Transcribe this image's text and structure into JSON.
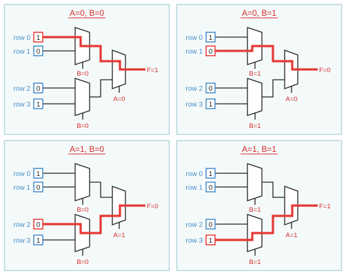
{
  "colors": {
    "highlight": "#e53935",
    "row_blue": "#4a8cc9",
    "wire": "#222222",
    "panel_border": "#b7d6dc",
    "panel_bg": "#f4fafa",
    "title_red": "#d8292a"
  },
  "panels": [
    {
      "title": "A=0, B=0",
      "inputs": [
        {
          "label": "row 0",
          "value": "1",
          "active": true
        },
        {
          "label": "row 1",
          "value": "0",
          "active": false
        },
        {
          "label": "row 2",
          "value": "0",
          "active": false
        },
        {
          "label": "row 3",
          "value": "1",
          "active": false
        }
      ],
      "mux_top_select": "B=0",
      "mux_bottom_select": "B=0",
      "mux_final_select": "A=0",
      "output": "F=1",
      "A": 0,
      "B": 0
    },
    {
      "title": "A=0, B=1",
      "inputs": [
        {
          "label": "row 0",
          "value": "1",
          "active": false
        },
        {
          "label": "row 1",
          "value": "0",
          "active": true
        },
        {
          "label": "row 2",
          "value": "0",
          "active": false
        },
        {
          "label": "row 3",
          "value": "1",
          "active": false
        }
      ],
      "mux_top_select": "B=1",
      "mux_bottom_select": "B=1",
      "mux_final_select": "A=0",
      "output": "F=0",
      "A": 0,
      "B": 1
    },
    {
      "title": "A=1, B=0",
      "inputs": [
        {
          "label": "row 0",
          "value": "1",
          "active": false
        },
        {
          "label": "row 1",
          "value": "0",
          "active": false
        },
        {
          "label": "row 2",
          "value": "0",
          "active": true
        },
        {
          "label": "row 3",
          "value": "1",
          "active": false
        }
      ],
      "mux_top_select": "B=0",
      "mux_bottom_select": "B=0",
      "mux_final_select": "A=1",
      "output": "F=0",
      "A": 1,
      "B": 0
    },
    {
      "title": "A=1, B=1",
      "inputs": [
        {
          "label": "row 0",
          "value": "1",
          "active": false
        },
        {
          "label": "row 1",
          "value": "0",
          "active": false
        },
        {
          "label": "row 2",
          "value": "0",
          "active": false
        },
        {
          "label": "row 3",
          "value": "1",
          "active": true
        }
      ],
      "mux_top_select": "B=1",
      "mux_bottom_select": "B=1",
      "mux_final_select": "A=1",
      "output": "F=1",
      "A": 1,
      "B": 1
    }
  ]
}
